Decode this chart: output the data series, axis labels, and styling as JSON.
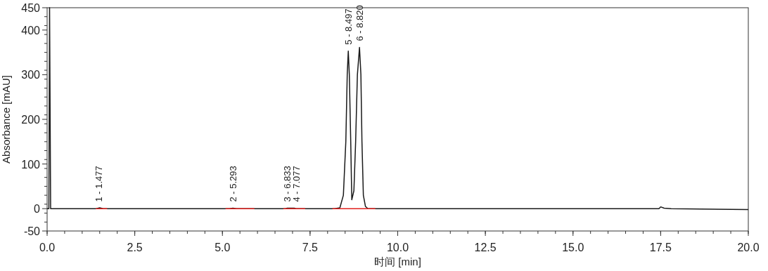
{
  "chart_data": {
    "type": "line",
    "xlabel": "时间 [min]",
    "ylabel": "Absorbance [mAU]",
    "xlim": [
      0,
      20
    ],
    "ylim": [
      -50,
      450
    ],
    "xticks": [
      {
        "value": 0,
        "label": "0.0"
      },
      {
        "value": 2.5,
        "label": "2.5"
      },
      {
        "value": 5,
        "label": "5.0"
      },
      {
        "value": 7.5,
        "label": "7.5"
      },
      {
        "value": 10,
        "label": "10.0"
      },
      {
        "value": 12.5,
        "label": "12.5"
      },
      {
        "value": 15,
        "label": "15.0"
      },
      {
        "value": 17.5,
        "label": "17.5"
      },
      {
        "value": 20,
        "label": "20.0"
      }
    ],
    "yticks": [
      -50,
      0,
      100,
      200,
      300,
      400,
      450
    ],
    "grid": false,
    "marker": "none",
    "line_style": "solid",
    "series": [
      {
        "color": "#1a1a1a",
        "x": [
          0,
          0.05,
          0.07,
          0.1,
          1.4,
          1.5,
          1.6,
          5.2,
          5.3,
          5.4,
          6.8,
          6.85,
          7.05,
          7.1,
          8.2,
          8.35,
          8.45,
          8.52,
          8.56,
          8.59,
          8.62,
          8.66,
          8.69,
          8.75,
          8.8,
          8.85,
          8.91,
          8.95,
          8.98,
          9.02,
          9.08,
          9.15,
          17.45,
          17.5,
          17.6,
          17.8,
          20
        ],
        "values": [
          0,
          0,
          450,
          0,
          0,
          2,
          0,
          0,
          1,
          0,
          0,
          1,
          1,
          0,
          0,
          2,
          30,
          150,
          300,
          353,
          300,
          150,
          20,
          40,
          150,
          300,
          361,
          300,
          150,
          30,
          5,
          0,
          0,
          4,
          1,
          0,
          -2
        ]
      },
      {
        "color": "#e0201e",
        "x": [
          1.4,
          1.7
        ],
        "values": [
          0,
          0
        ]
      },
      {
        "color": "#e0201e",
        "x": [
          5.1,
          5.9
        ],
        "values": [
          0,
          0
        ]
      },
      {
        "color": "#e0201e",
        "x": [
          6.75,
          7.35
        ],
        "values": [
          0,
          0
        ]
      },
      {
        "color": "#e0201e",
        "x": [
          8.15,
          9.35
        ],
        "values": [
          0,
          0
        ]
      }
    ],
    "annotations": [
      {
        "text": "1 - 1.477",
        "x": 1.46,
        "y": 1
      },
      {
        "text": "2 - 5.293",
        "x": 5.3,
        "y": 1
      },
      {
        "text": "3 - 6.833",
        "x": 6.85,
        "y": 1
      },
      {
        "text": "4 - 7.077",
        "x": 7.1,
        "y": 1
      },
      {
        "text": "5 - 8.497",
        "x": 8.59,
        "y": 353
      },
      {
        "text": "6 - 8.820",
        "x": 8.91,
        "y": 361
      }
    ]
  }
}
